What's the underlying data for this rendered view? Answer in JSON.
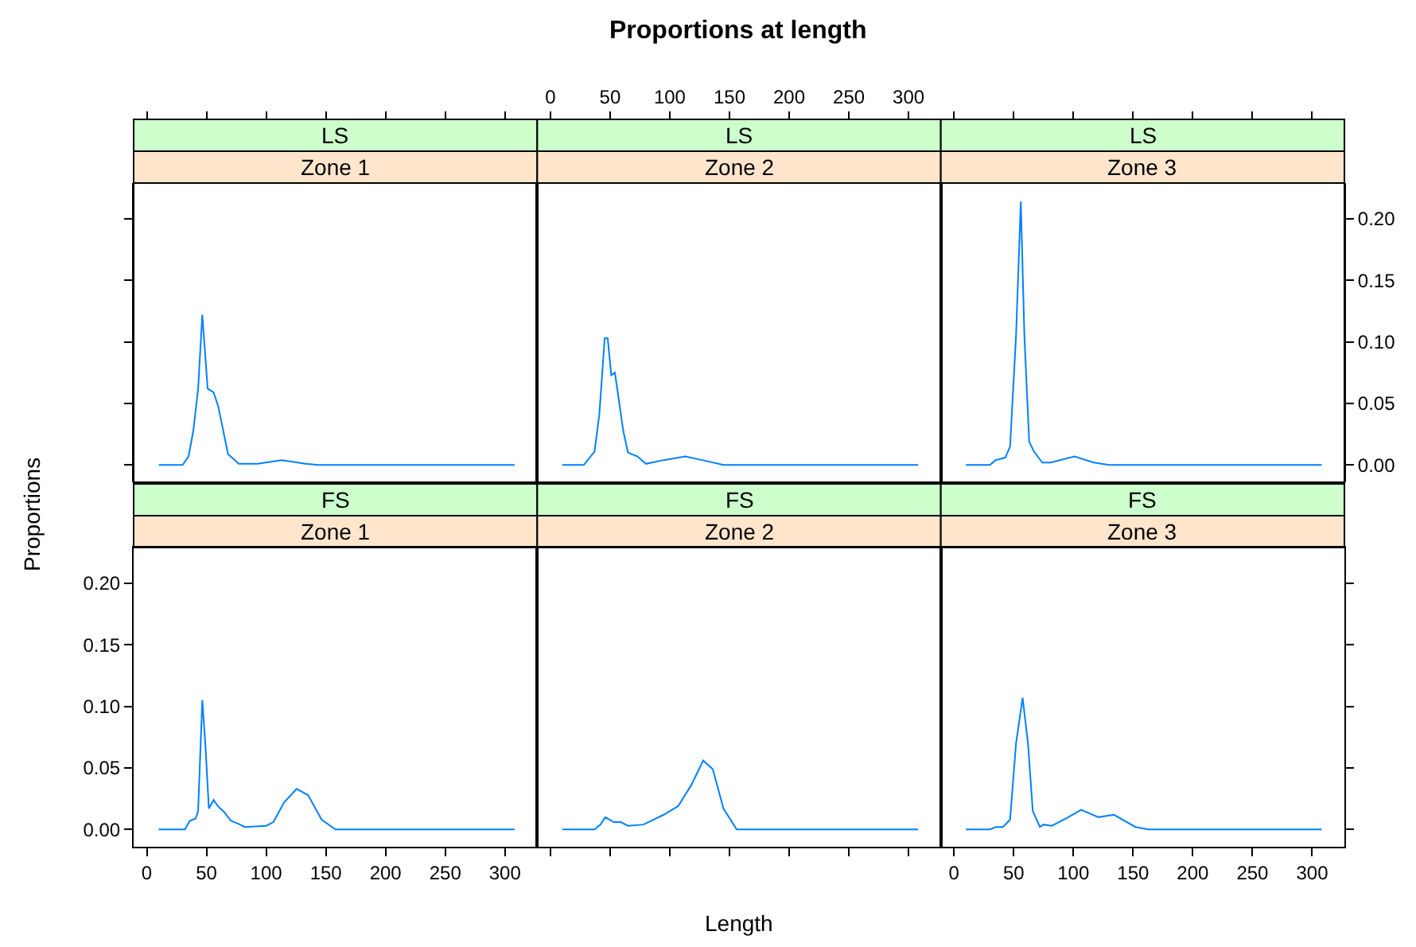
{
  "chart_data": [
    {
      "type": "line",
      "title": "LS",
      "subtitle": "Zone 1",
      "annotations": [
        "Proportions at length"
      ],
      "tick_labels": false,
      "xlim": [
        -11,
        327
      ],
      "ylim": [
        -0.014,
        0.229
      ],
      "xticks": [
        {
          "value": 0,
          "label": null
        },
        {
          "value": 50,
          "label": null
        },
        {
          "value": 100,
          "label": null
        },
        {
          "value": 150,
          "label": null
        },
        {
          "value": 200,
          "label": null
        },
        {
          "value": 250,
          "label": null
        },
        {
          "value": 300,
          "label": null
        }
      ],
      "yticks": [
        {
          "value": 0,
          "label": null
        },
        {
          "value": 0.05,
          "label": null
        },
        {
          "value": 0.1,
          "label": null
        },
        {
          "value": 0.15,
          "label": null
        },
        {
          "value": 0.2,
          "label": null
        }
      ],
      "x": [
        10,
        30,
        35,
        39,
        43,
        46.5,
        51,
        56,
        60,
        64,
        68,
        77,
        93,
        113,
        133,
        144,
        308
      ],
      "series": [
        {
          "color": "#0080ff",
          "values": [
            0,
            0,
            0.007,
            0.028,
            0.062,
            0.122,
            0.062,
            0.059,
            0.047,
            0.028,
            0.009,
            0.001,
            0.001,
            0.004,
            0.001,
            0,
            0
          ]
        }
      ]
    },
    {
      "type": "line",
      "title": "LS",
      "subtitle": "Zone 2",
      "tick_labels": "x",
      "xlim": [
        -11,
        327
      ],
      "ylim": [
        -0.014,
        0.229
      ],
      "xticks": [
        0,
        50,
        100,
        150,
        200,
        250,
        300
      ],
      "x": [
        10,
        28,
        37,
        41,
        45.5,
        48,
        51,
        54,
        56,
        61,
        65,
        73,
        80,
        95,
        113,
        127,
        145,
        308
      ],
      "series": [
        {
          "color": "#0080ff",
          "values": [
            0,
            0,
            0.011,
            0.041,
            0.103,
            0.103,
            0.073,
            0.075,
            0.062,
            0.028,
            0.01,
            0.007,
            0.001,
            0.004,
            0.007,
            0.004,
            0,
            0
          ]
        }
      ]
    },
    {
      "type": "line",
      "title": "LS",
      "subtitle": "Zone 3",
      "tick_labels": "y",
      "xlim": [
        -11,
        327
      ],
      "ylim": [
        -0.014,
        0.229
      ],
      "xticks": [
        {
          "value": 0,
          "label": null
        },
        {
          "value": 50,
          "label": null
        },
        {
          "value": 100,
          "label": null
        },
        {
          "value": 150,
          "label": null
        },
        {
          "value": 200,
          "label": null
        },
        {
          "value": 250,
          "label": null
        },
        {
          "value": 300,
          "label": null
        }
      ],
      "yticks": [
        {
          "value": 0,
          "label": "0.00"
        },
        {
          "value": 0.05,
          "label": "0.05"
        },
        {
          "value": 0.1,
          "label": "0.10"
        },
        {
          "value": 0.15,
          "label": "0.15"
        },
        {
          "value": 0.2,
          "label": "0.20"
        }
      ],
      "x": [
        10,
        30,
        35,
        43,
        47,
        52,
        56,
        59,
        63,
        67,
        74,
        81,
        101,
        117,
        130,
        308
      ],
      "series": [
        {
          "color": "#0080ff",
          "values": [
            0,
            0,
            0.004,
            0.006,
            0.015,
            0.105,
            0.214,
            0.105,
            0.019,
            0.011,
            0.002,
            0.002,
            0.007,
            0.002,
            0,
            0
          ]
        }
      ]
    },
    {
      "type": "line",
      "title": "FS",
      "subtitle": "Zone 1",
      "ylabel": "Proportions",
      "xlim": [
        -11,
        327
      ],
      "ylim": [
        -0.014,
        0.229
      ],
      "xticks": [
        0,
        50,
        100,
        150,
        200,
        250,
        300
      ],
      "yticks": [
        {
          "value": 0,
          "label": "0.00"
        },
        {
          "value": 0.05,
          "label": "0.05"
        },
        {
          "value": 0.1,
          "label": "0.10"
        },
        {
          "value": 0.15,
          "label": "0.15"
        },
        {
          "value": 0.2,
          "label": "0.20"
        }
      ],
      "x": [
        10,
        32,
        36,
        41,
        43,
        46.5,
        49,
        52,
        56,
        59.5,
        65,
        70.5,
        76,
        82,
        100,
        106,
        115,
        125.5,
        135,
        146.5,
        158,
        308
      ],
      "series": [
        {
          "color": "#0080ff",
          "values": [
            0,
            0,
            0.007,
            0.009,
            0.015,
            0.105,
            0.07,
            0.017,
            0.024,
            0.019,
            0.014,
            0.007,
            0.005,
            0.002,
            0.003,
            0.006,
            0.022,
            0.033,
            0.028,
            0.008,
            0,
            0
          ]
        }
      ]
    },
    {
      "type": "line",
      "title": "FS",
      "subtitle": "Zone 2",
      "xlabel": "Length",
      "tick_labels": false,
      "xlim": [
        -11,
        327
      ],
      "ylim": [
        -0.014,
        0.229
      ],
      "xticks": [
        {
          "value": 0,
          "label": null
        },
        {
          "value": 50,
          "label": null
        },
        {
          "value": 100,
          "label": null
        },
        {
          "value": 150,
          "label": null
        },
        {
          "value": 200,
          "label": null
        },
        {
          "value": 250,
          "label": null
        },
        {
          "value": 300,
          "label": null
        }
      ],
      "x": [
        10,
        37,
        42,
        46,
        53,
        59,
        65,
        78,
        95,
        107,
        118,
        128,
        136,
        145,
        156,
        308
      ],
      "series": [
        {
          "color": "#0080ff",
          "values": [
            0,
            0,
            0.004,
            0.01,
            0.006,
            0.006,
            0.003,
            0.004,
            0.012,
            0.019,
            0.036,
            0.056,
            0.049,
            0.017,
            0,
            0
          ]
        }
      ]
    },
    {
      "type": "line",
      "title": "FS",
      "subtitle": "Zone 3",
      "tick_labels": "x",
      "xlim": [
        -11,
        327
      ],
      "ylim": [
        -0.014,
        0.229
      ],
      "xticks": [
        0,
        50,
        100,
        150,
        200,
        250,
        300
      ],
      "yticks": [
        {
          "value": 0,
          "label": null
        },
        {
          "value": 0.05,
          "label": null
        },
        {
          "value": 0.1,
          "label": null
        },
        {
          "value": 0.15,
          "label": null
        },
        {
          "value": 0.2,
          "label": null
        }
      ],
      "x": [
        10,
        30,
        35,
        41,
        47,
        52,
        57.5,
        62,
        66,
        72,
        75,
        82,
        94,
        106.5,
        121,
        134,
        152,
        163,
        308
      ],
      "series": [
        {
          "color": "#0080ff",
          "values": [
            0,
            0,
            0.002,
            0.002,
            0.008,
            0.07,
            0.107,
            0.07,
            0.015,
            0.002,
            0.004,
            0.003,
            0.009,
            0.016,
            0.01,
            0.012,
            0.002,
            0,
            0
          ]
        }
      ]
    }
  ]
}
